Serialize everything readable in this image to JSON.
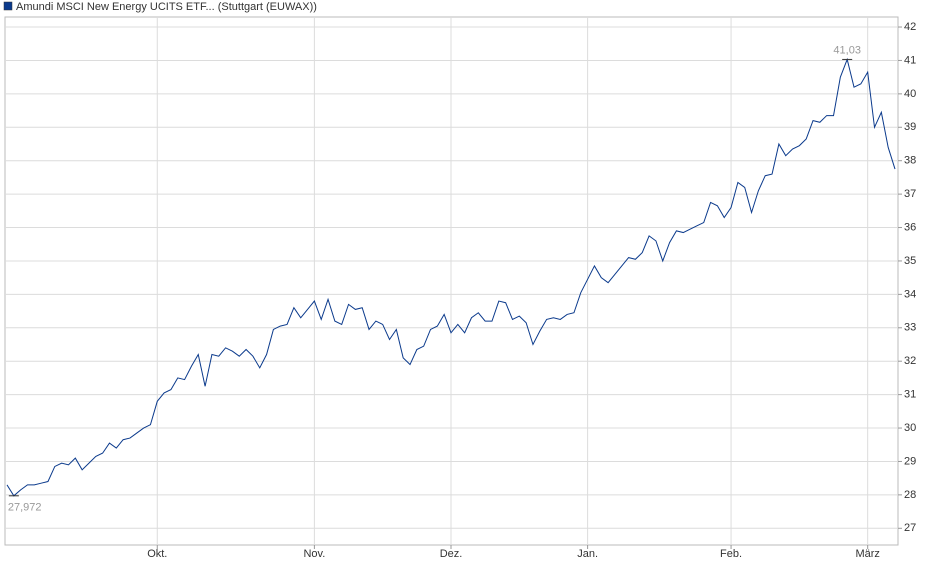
{
  "chart_data": {
    "type": "line",
    "legend": "Amundi MSCI New Energy UCITS ETF... (Stuttgart (EUWAX))",
    "categories": [
      null,
      null,
      null,
      null,
      null,
      null,
      null,
      null,
      null,
      null,
      null,
      null,
      null,
      null,
      null,
      null,
      null,
      null,
      null,
      null,
      null,
      null,
      "Okt.",
      null,
      null,
      null,
      null,
      null,
      null,
      null,
      null,
      null,
      null,
      null,
      null,
      null,
      null,
      null,
      null,
      null,
      null,
      null,
      null,
      null,
      null,
      "Nov.",
      null,
      null,
      null,
      null,
      null,
      null,
      null,
      null,
      null,
      null,
      null,
      null,
      null,
      null,
      null,
      null,
      null,
      null,
      null,
      "Dez.",
      null,
      null,
      null,
      null,
      null,
      null,
      null,
      null,
      null,
      null,
      null,
      null,
      null,
      null,
      null,
      null,
      null,
      null,
      null,
      "Jan.",
      null,
      null,
      null,
      null,
      null,
      null,
      null,
      null,
      null,
      null,
      null,
      null,
      null,
      null,
      null,
      null,
      null,
      null,
      null,
      null,
      "Feb.",
      null,
      null,
      null,
      null,
      null,
      null,
      null,
      null,
      null,
      null,
      null,
      null,
      null,
      null,
      null,
      null,
      null,
      null,
      null,
      "März",
      null,
      null,
      null,
      null
    ],
    "series": [
      {
        "name": "Amundi MSCI New Energy UCITS ETF... (Stuttgart (EUWAX))",
        "color": "#0b3a8c",
        "values": [
          28.3,
          27.972,
          28.15,
          28.3,
          28.3,
          28.35,
          28.4,
          28.85,
          28.95,
          28.9,
          29.1,
          28.75,
          28.95,
          29.15,
          29.25,
          29.55,
          29.4,
          29.65,
          29.7,
          29.85,
          30.0,
          30.1,
          30.8,
          31.05,
          31.15,
          31.5,
          31.45,
          31.85,
          32.2,
          31.25,
          32.2,
          32.15,
          32.4,
          32.3,
          32.15,
          32.35,
          32.15,
          31.8,
          32.2,
          32.95,
          33.05,
          33.1,
          33.6,
          33.3,
          33.55,
          33.8,
          33.25,
          33.85,
          33.2,
          33.1,
          33.7,
          33.55,
          33.6,
          32.95,
          33.2,
          33.1,
          32.65,
          32.95,
          32.1,
          31.9,
          32.35,
          32.45,
          32.95,
          33.05,
          33.4,
          32.85,
          33.1,
          32.85,
          33.3,
          33.45,
          33.2,
          33.2,
          33.8,
          33.75,
          33.25,
          33.35,
          33.15,
          32.5,
          32.9,
          33.25,
          33.3,
          33.25,
          33.4,
          33.45,
          34.05,
          34.45,
          34.85,
          34.5,
          34.35,
          34.6,
          34.85,
          35.1,
          35.05,
          35.25,
          35.75,
          35.6,
          35.0,
          35.55,
          35.9,
          35.85,
          35.95,
          36.05,
          36.15,
          36.75,
          36.65,
          36.3,
          36.6,
          37.35,
          37.2,
          36.45,
          37.1,
          37.55,
          37.6,
          38.5,
          38.15,
          38.35,
          38.45,
          38.65,
          39.2,
          39.15,
          39.35,
          39.35,
          40.5,
          41.03,
          40.2,
          40.3,
          40.65,
          39.0,
          39.45,
          38.4,
          37.75
        ]
      }
    ],
    "annotations": [
      {
        "value": 41.03,
        "label": "41,03"
      },
      {
        "value": 27.972,
        "label": "27,972"
      }
    ],
    "ylim": [
      26.5,
      42.3
    ],
    "yticks": [
      27,
      28,
      29,
      30,
      31,
      32,
      33,
      34,
      35,
      36,
      37,
      38,
      39,
      40,
      41,
      42
    ],
    "grid": true
  }
}
